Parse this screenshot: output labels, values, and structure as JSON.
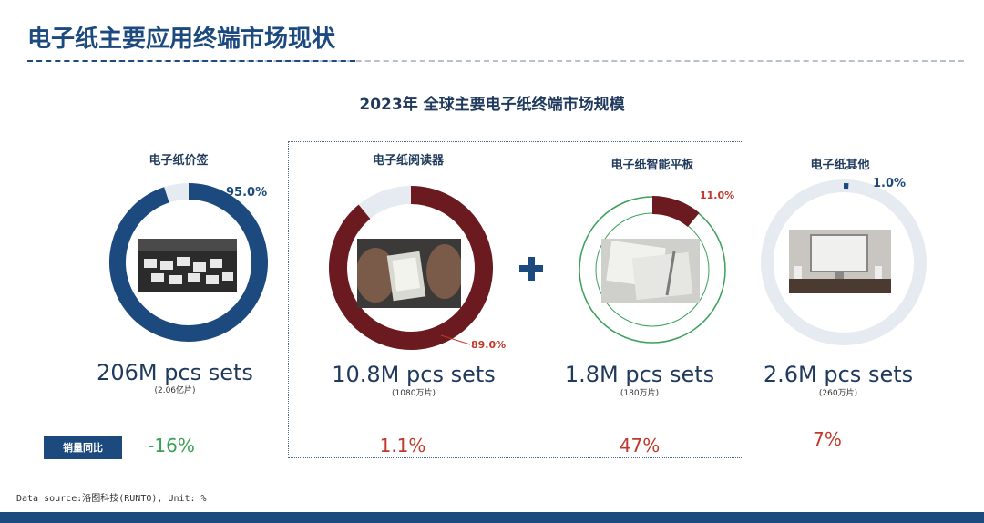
{
  "page": {
    "title": "电子纸主要应用终端市场现状",
    "subtitle": "2023年 全球主要电子纸终端市场规模",
    "yoy_label": "销量同比",
    "source": "Data source:洛图科技(RUNTO), Unit: %"
  },
  "colors": {
    "navy": "#1c4a7e",
    "maroon": "#6b1a1f",
    "light": "#e6ebf1",
    "green": "#3aa055",
    "red": "#c0392b"
  },
  "chart_data": {
    "type": "pie",
    "title": "2023年 全球主要电子纸终端市场规模",
    "unit": "%",
    "items": [
      {
        "category": "电子纸价签",
        "share": 95.0,
        "share_label": "95.0%",
        "volume": "206M pcs sets",
        "volume_cn": "(2.06亿片)",
        "yoy": "-16%",
        "color": "#1c4a7e"
      },
      {
        "category": "电子纸阅读器",
        "share": 89.0,
        "share_label": "89.0%",
        "volume": "10.8M pcs sets",
        "volume_cn": "(1080万片)",
        "yoy": "1.1%",
        "color": "#6b1a1f"
      },
      {
        "category": "电子纸智能平板",
        "share": 11.0,
        "share_label": "11.0%",
        "volume": "1.8M pcs sets",
        "volume_cn": "(180万片)",
        "yoy": "47%",
        "color": "#6b1a1f"
      },
      {
        "category": "电子纸其他",
        "share": 1.0,
        "share_label": "1.0%",
        "volume": "2.6M pcs sets",
        "volume_cn": "(260万片)",
        "yoy": "7%",
        "color": "#1c4a7e"
      }
    ]
  }
}
